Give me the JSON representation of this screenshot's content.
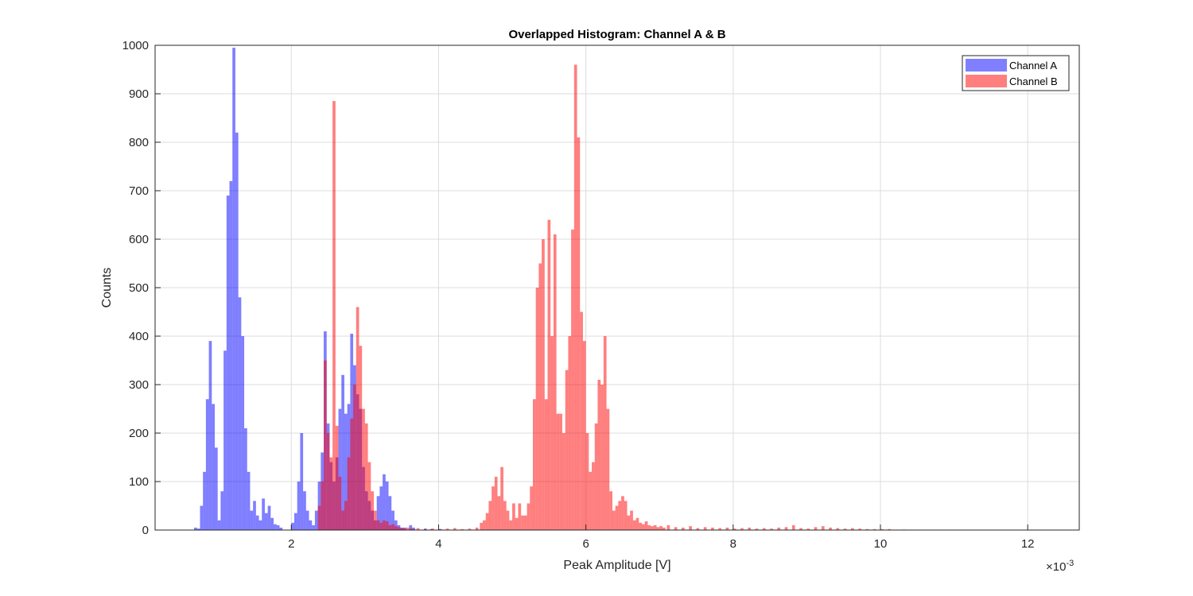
{
  "chart_data": {
    "type": "bar",
    "title": "Overlapped Histogram: Channel A & B",
    "xlabel": "Peak Amplitude [V]",
    "ylabel": "Counts",
    "x_exponent_label": "×10",
    "x_exponent_power": "-3",
    "xlim": [
      0.15,
      12.7
    ],
    "ylim": [
      0,
      1000
    ],
    "x_ticks": [
      2,
      4,
      6,
      8,
      10,
      12
    ],
    "y_ticks": [
      0,
      100,
      200,
      300,
      400,
      500,
      600,
      700,
      800,
      900,
      1000
    ],
    "grid": true,
    "legend_position": "top-right",
    "bin_width": 0.04,
    "series": [
      {
        "name": "Channel A",
        "color": "#0000ff",
        "opacity": 0.5,
        "points": [
          [
            0.68,
            5
          ],
          [
            0.72,
            3
          ],
          [
            0.76,
            50
          ],
          [
            0.8,
            120
          ],
          [
            0.84,
            270
          ],
          [
            0.88,
            390
          ],
          [
            0.92,
            260
          ],
          [
            0.96,
            170
          ],
          [
            1.0,
            20
          ],
          [
            1.04,
            80
          ],
          [
            1.08,
            370
          ],
          [
            1.12,
            690
          ],
          [
            1.16,
            720
          ],
          [
            1.2,
            995
          ],
          [
            1.24,
            820
          ],
          [
            1.28,
            480
          ],
          [
            1.32,
            400
          ],
          [
            1.36,
            210
          ],
          [
            1.4,
            120
          ],
          [
            1.44,
            40
          ],
          [
            1.48,
            60
          ],
          [
            1.52,
            30
          ],
          [
            1.56,
            20
          ],
          [
            1.6,
            65
          ],
          [
            1.64,
            35
          ],
          [
            1.68,
            50
          ],
          [
            1.72,
            25
          ],
          [
            1.76,
            12
          ],
          [
            1.8,
            10
          ],
          [
            1.84,
            5
          ],
          [
            2.0,
            15
          ],
          [
            2.04,
            35
          ],
          [
            2.08,
            100
          ],
          [
            2.12,
            200
          ],
          [
            2.16,
            80
          ],
          [
            2.2,
            40
          ],
          [
            2.24,
            20
          ],
          [
            2.28,
            10
          ],
          [
            2.32,
            40
          ],
          [
            2.36,
            100
          ],
          [
            2.4,
            160
          ],
          [
            2.44,
            410
          ],
          [
            2.48,
            220
          ],
          [
            2.52,
            140
          ],
          [
            2.56,
            100
          ],
          [
            2.6,
            150
          ],
          [
            2.64,
            250
          ],
          [
            2.68,
            320
          ],
          [
            2.72,
            240
          ],
          [
            2.76,
            260
          ],
          [
            2.8,
            405
          ],
          [
            2.84,
            340
          ],
          [
            2.88,
            280
          ],
          [
            2.92,
            250
          ],
          [
            2.96,
            130
          ],
          [
            3.0,
            80
          ],
          [
            3.04,
            60
          ],
          [
            3.08,
            40
          ],
          [
            3.12,
            20
          ],
          [
            3.16,
            70
          ],
          [
            3.2,
            90
          ],
          [
            3.24,
            115
          ],
          [
            3.28,
            100
          ],
          [
            3.32,
            70
          ],
          [
            3.36,
            40
          ],
          [
            3.4,
            20
          ],
          [
            3.44,
            10
          ],
          [
            3.48,
            5
          ],
          [
            3.52,
            5
          ],
          [
            3.6,
            10
          ],
          [
            3.64,
            5
          ],
          [
            3.8,
            3
          ],
          [
            3.88,
            2
          ],
          [
            4.0,
            2
          ]
        ]
      },
      {
        "name": "Channel B",
        "color": "#ff0000",
        "opacity": 0.5,
        "points": [
          [
            2.36,
            50
          ],
          [
            2.4,
            100
          ],
          [
            2.44,
            350
          ],
          [
            2.48,
            200
          ],
          [
            2.52,
            150
          ],
          [
            2.56,
            885
          ],
          [
            2.6,
            215
          ],
          [
            2.64,
            110
          ],
          [
            2.68,
            40
          ],
          [
            2.72,
            60
          ],
          [
            2.76,
            150
          ],
          [
            2.8,
            230
          ],
          [
            2.84,
            300
          ],
          [
            2.88,
            460
          ],
          [
            2.92,
            380
          ],
          [
            2.96,
            250
          ],
          [
            3.0,
            220
          ],
          [
            3.04,
            140
          ],
          [
            3.08,
            80
          ],
          [
            3.12,
            40
          ],
          [
            3.16,
            20
          ],
          [
            3.2,
            15
          ],
          [
            3.24,
            20
          ],
          [
            3.28,
            18
          ],
          [
            3.32,
            10
          ],
          [
            3.36,
            12
          ],
          [
            3.4,
            8
          ],
          [
            3.44,
            6
          ],
          [
            3.48,
            4
          ],
          [
            3.52,
            3
          ],
          [
            3.56,
            5
          ],
          [
            3.6,
            3
          ],
          [
            3.64,
            2
          ],
          [
            3.7,
            4
          ],
          [
            3.8,
            2
          ],
          [
            3.9,
            3
          ],
          [
            4.0,
            2
          ],
          [
            4.1,
            3
          ],
          [
            4.2,
            4
          ],
          [
            4.3,
            2
          ],
          [
            4.4,
            3
          ],
          [
            4.5,
            5
          ],
          [
            4.56,
            15
          ],
          [
            4.6,
            20
          ],
          [
            4.64,
            35
          ],
          [
            4.68,
            60
          ],
          [
            4.72,
            90
          ],
          [
            4.76,
            110
          ],
          [
            4.8,
            70
          ],
          [
            4.84,
            130
          ],
          [
            4.88,
            60
          ],
          [
            4.92,
            40
          ],
          [
            4.96,
            20
          ],
          [
            5.0,
            55
          ],
          [
            5.04,
            25
          ],
          [
            5.08,
            55
          ],
          [
            5.12,
            30
          ],
          [
            5.16,
            30
          ],
          [
            5.2,
            55
          ],
          [
            5.24,
            90
          ],
          [
            5.28,
            270
          ],
          [
            5.32,
            500
          ],
          [
            5.36,
            550
          ],
          [
            5.4,
            600
          ],
          [
            5.44,
            270
          ],
          [
            5.48,
            640
          ],
          [
            5.52,
            400
          ],
          [
            5.56,
            610
          ],
          [
            5.6,
            240
          ],
          [
            5.64,
            240
          ],
          [
            5.68,
            200
          ],
          [
            5.72,
            330
          ],
          [
            5.76,
            400
          ],
          [
            5.8,
            620
          ],
          [
            5.84,
            960
          ],
          [
            5.88,
            810
          ],
          [
            5.92,
            450
          ],
          [
            5.96,
            390
          ],
          [
            6.0,
            200
          ],
          [
            6.04,
            120
          ],
          [
            6.08,
            140
          ],
          [
            6.12,
            220
          ],
          [
            6.16,
            310
          ],
          [
            6.2,
            300
          ],
          [
            6.24,
            400
          ],
          [
            6.28,
            250
          ],
          [
            6.32,
            80
          ],
          [
            6.36,
            40
          ],
          [
            6.4,
            50
          ],
          [
            6.44,
            60
          ],
          [
            6.48,
            70
          ],
          [
            6.52,
            60
          ],
          [
            6.56,
            30
          ],
          [
            6.6,
            40
          ],
          [
            6.64,
            20
          ],
          [
            6.68,
            25
          ],
          [
            6.72,
            15
          ],
          [
            6.76,
            12
          ],
          [
            6.8,
            18
          ],
          [
            6.84,
            10
          ],
          [
            6.88,
            8
          ],
          [
            6.92,
            10
          ],
          [
            6.96,
            6
          ],
          [
            7.0,
            8
          ],
          [
            7.04,
            5
          ],
          [
            7.1,
            10
          ],
          [
            7.2,
            6
          ],
          [
            7.3,
            5
          ],
          [
            7.4,
            8
          ],
          [
            7.5,
            4
          ],
          [
            7.6,
            6
          ],
          [
            7.7,
            5
          ],
          [
            7.8,
            4
          ],
          [
            7.9,
            5
          ],
          [
            8.0,
            3
          ],
          [
            8.1,
            4
          ],
          [
            8.2,
            5
          ],
          [
            8.3,
            3
          ],
          [
            8.4,
            4
          ],
          [
            8.5,
            3
          ],
          [
            8.6,
            5
          ],
          [
            8.7,
            6
          ],
          [
            8.8,
            10
          ],
          [
            8.9,
            4
          ],
          [
            9.0,
            3
          ],
          [
            9.1,
            6
          ],
          [
            9.2,
            8
          ],
          [
            9.3,
            5
          ],
          [
            9.4,
            4
          ],
          [
            9.5,
            3
          ],
          [
            9.6,
            4
          ],
          [
            9.7,
            3
          ],
          [
            9.8,
            2
          ],
          [
            9.9,
            2
          ],
          [
            10.0,
            2
          ],
          [
            10.1,
            2
          ],
          [
            10.3,
            1
          ]
        ]
      }
    ]
  }
}
